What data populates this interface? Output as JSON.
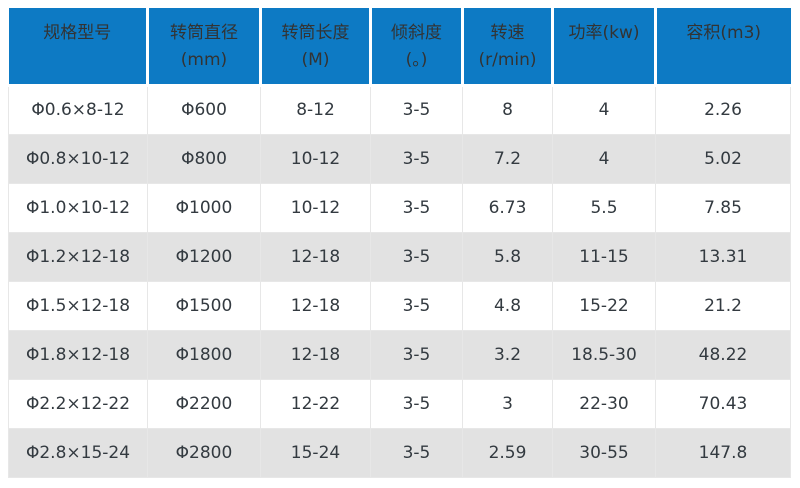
{
  "colors": {
    "header_bg": "#0d7ac4",
    "header_text": "#333333",
    "row_bg": "#ffffff",
    "row_alt_bg": "#e2e2e2",
    "body_text": "#333a40",
    "grid_line": "#e7e7e7"
  },
  "table": {
    "columns": [
      {
        "line1": "规格型号",
        "line2": ""
      },
      {
        "line1": "转筒直径",
        "line2": "(mm)"
      },
      {
        "line1": "转筒长度",
        "line2": "(M)"
      },
      {
        "line1": "倾斜度",
        "line2": "(。)"
      },
      {
        "line1": "转速",
        "line2": "(r/min)"
      },
      {
        "line1": "功率(kw)",
        "line2": ""
      },
      {
        "line1": "容积(m3)",
        "line2": ""
      }
    ],
    "rows": [
      [
        "Φ0.6×8-12",
        "Φ600",
        "8-12",
        "3-5",
        "8",
        "4",
        "2.26"
      ],
      [
        "Φ0.8×10-12",
        "Φ800",
        "10-12",
        "3-5",
        "7.2",
        "4",
        "5.02"
      ],
      [
        "Φ1.0×10-12",
        "Φ1000",
        "10-12",
        "3-5",
        "6.73",
        "5.5",
        "7.85"
      ],
      [
        "Φ1.2×12-18",
        "Φ1200",
        "12-18",
        "3-5",
        "5.8",
        "11-15",
        "13.31"
      ],
      [
        "Φ1.5×12-18",
        "Φ1500",
        "12-18",
        "3-5",
        "4.8",
        "15-22",
        "21.2"
      ],
      [
        "Φ1.8×12-18",
        "Φ1800",
        "12-18",
        "3-5",
        "3.2",
        "18.5-30",
        "48.22"
      ],
      [
        "Φ2.2×12-22",
        "Φ2200",
        "12-22",
        "3-5",
        "3",
        "22-30",
        "70.43"
      ],
      [
        "Φ2.8×15-24",
        "Φ2800",
        "15-24",
        "3-5",
        "2.59",
        "30-55",
        "147.8"
      ]
    ]
  }
}
